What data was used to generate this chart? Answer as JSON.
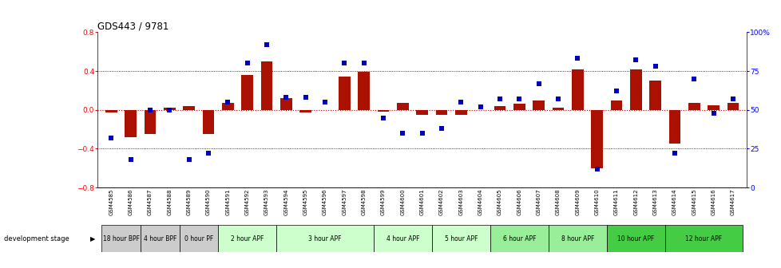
{
  "title": "GDS443 / 9781",
  "samples": [
    "GSM4585",
    "GSM4586",
    "GSM4587",
    "GSM4588",
    "GSM4589",
    "GSM4590",
    "GSM4591",
    "GSM4592",
    "GSM4593",
    "GSM4594",
    "GSM4595",
    "GSM4596",
    "GSM4597",
    "GSM4598",
    "GSM4599",
    "GSM4600",
    "GSM4601",
    "GSM4602",
    "GSM4603",
    "GSM4604",
    "GSM4605",
    "GSM4606",
    "GSM4607",
    "GSM4608",
    "GSM4609",
    "GSM4610",
    "GSM4611",
    "GSM4612",
    "GSM4613",
    "GSM4614",
    "GSM4615",
    "GSM4616",
    "GSM4617"
  ],
  "log_ratios": [
    -0.03,
    -0.28,
    -0.25,
    0.02,
    0.04,
    -0.25,
    0.07,
    0.36,
    0.5,
    0.12,
    -0.03,
    0.0,
    0.34,
    0.39,
    -0.02,
    0.07,
    -0.05,
    -0.05,
    -0.05,
    0.0,
    0.04,
    0.06,
    0.1,
    0.02,
    0.42,
    -0.6,
    0.1,
    0.42,
    0.3,
    -0.35,
    0.07,
    0.05,
    0.07
  ],
  "percentile_ranks": [
    32,
    18,
    50,
    50,
    18,
    22,
    55,
    80,
    92,
    58,
    58,
    55,
    80,
    80,
    45,
    35,
    35,
    38,
    55,
    52,
    57,
    57,
    67,
    57,
    83,
    12,
    62,
    82,
    78,
    22,
    70,
    48,
    57
  ],
  "bar_color": "#aa1100",
  "dot_color": "#0000bb",
  "zero_line_color": "#cc0000",
  "dot_line_color": "#cc0000",
  "gridline_color": "#000000",
  "ylim_left": [
    -0.8,
    0.8
  ],
  "ylim_right": [
    0,
    100
  ],
  "yticks_left": [
    -0.8,
    -0.4,
    0.0,
    0.4,
    0.8
  ],
  "yticks_right": [
    0,
    25,
    50,
    75,
    100
  ],
  "stages": [
    {
      "label": "18 hour BPF",
      "start": 0,
      "end": 1,
      "color": "#cccccc"
    },
    {
      "label": "4 hour BPF",
      "start": 2,
      "end": 3,
      "color": "#cccccc"
    },
    {
      "label": "0 hour PF",
      "start": 4,
      "end": 5,
      "color": "#cccccc"
    },
    {
      "label": "2 hour APF",
      "start": 6,
      "end": 8,
      "color": "#ccffcc"
    },
    {
      "label": "3 hour APF",
      "start": 9,
      "end": 13,
      "color": "#ccffcc"
    },
    {
      "label": "4 hour APF",
      "start": 14,
      "end": 16,
      "color": "#ccffcc"
    },
    {
      "label": "5 hour APF",
      "start": 17,
      "end": 19,
      "color": "#ccffcc"
    },
    {
      "label": "6 hour APF",
      "start": 20,
      "end": 22,
      "color": "#99ee99"
    },
    {
      "label": "8 hour APF",
      "start": 23,
      "end": 25,
      "color": "#99ee99"
    },
    {
      "label": "10 hour APF",
      "start": 26,
      "end": 28,
      "color": "#44cc44"
    },
    {
      "label": "12 hour APF",
      "start": 29,
      "end": 32,
      "color": "#44cc44"
    }
  ]
}
